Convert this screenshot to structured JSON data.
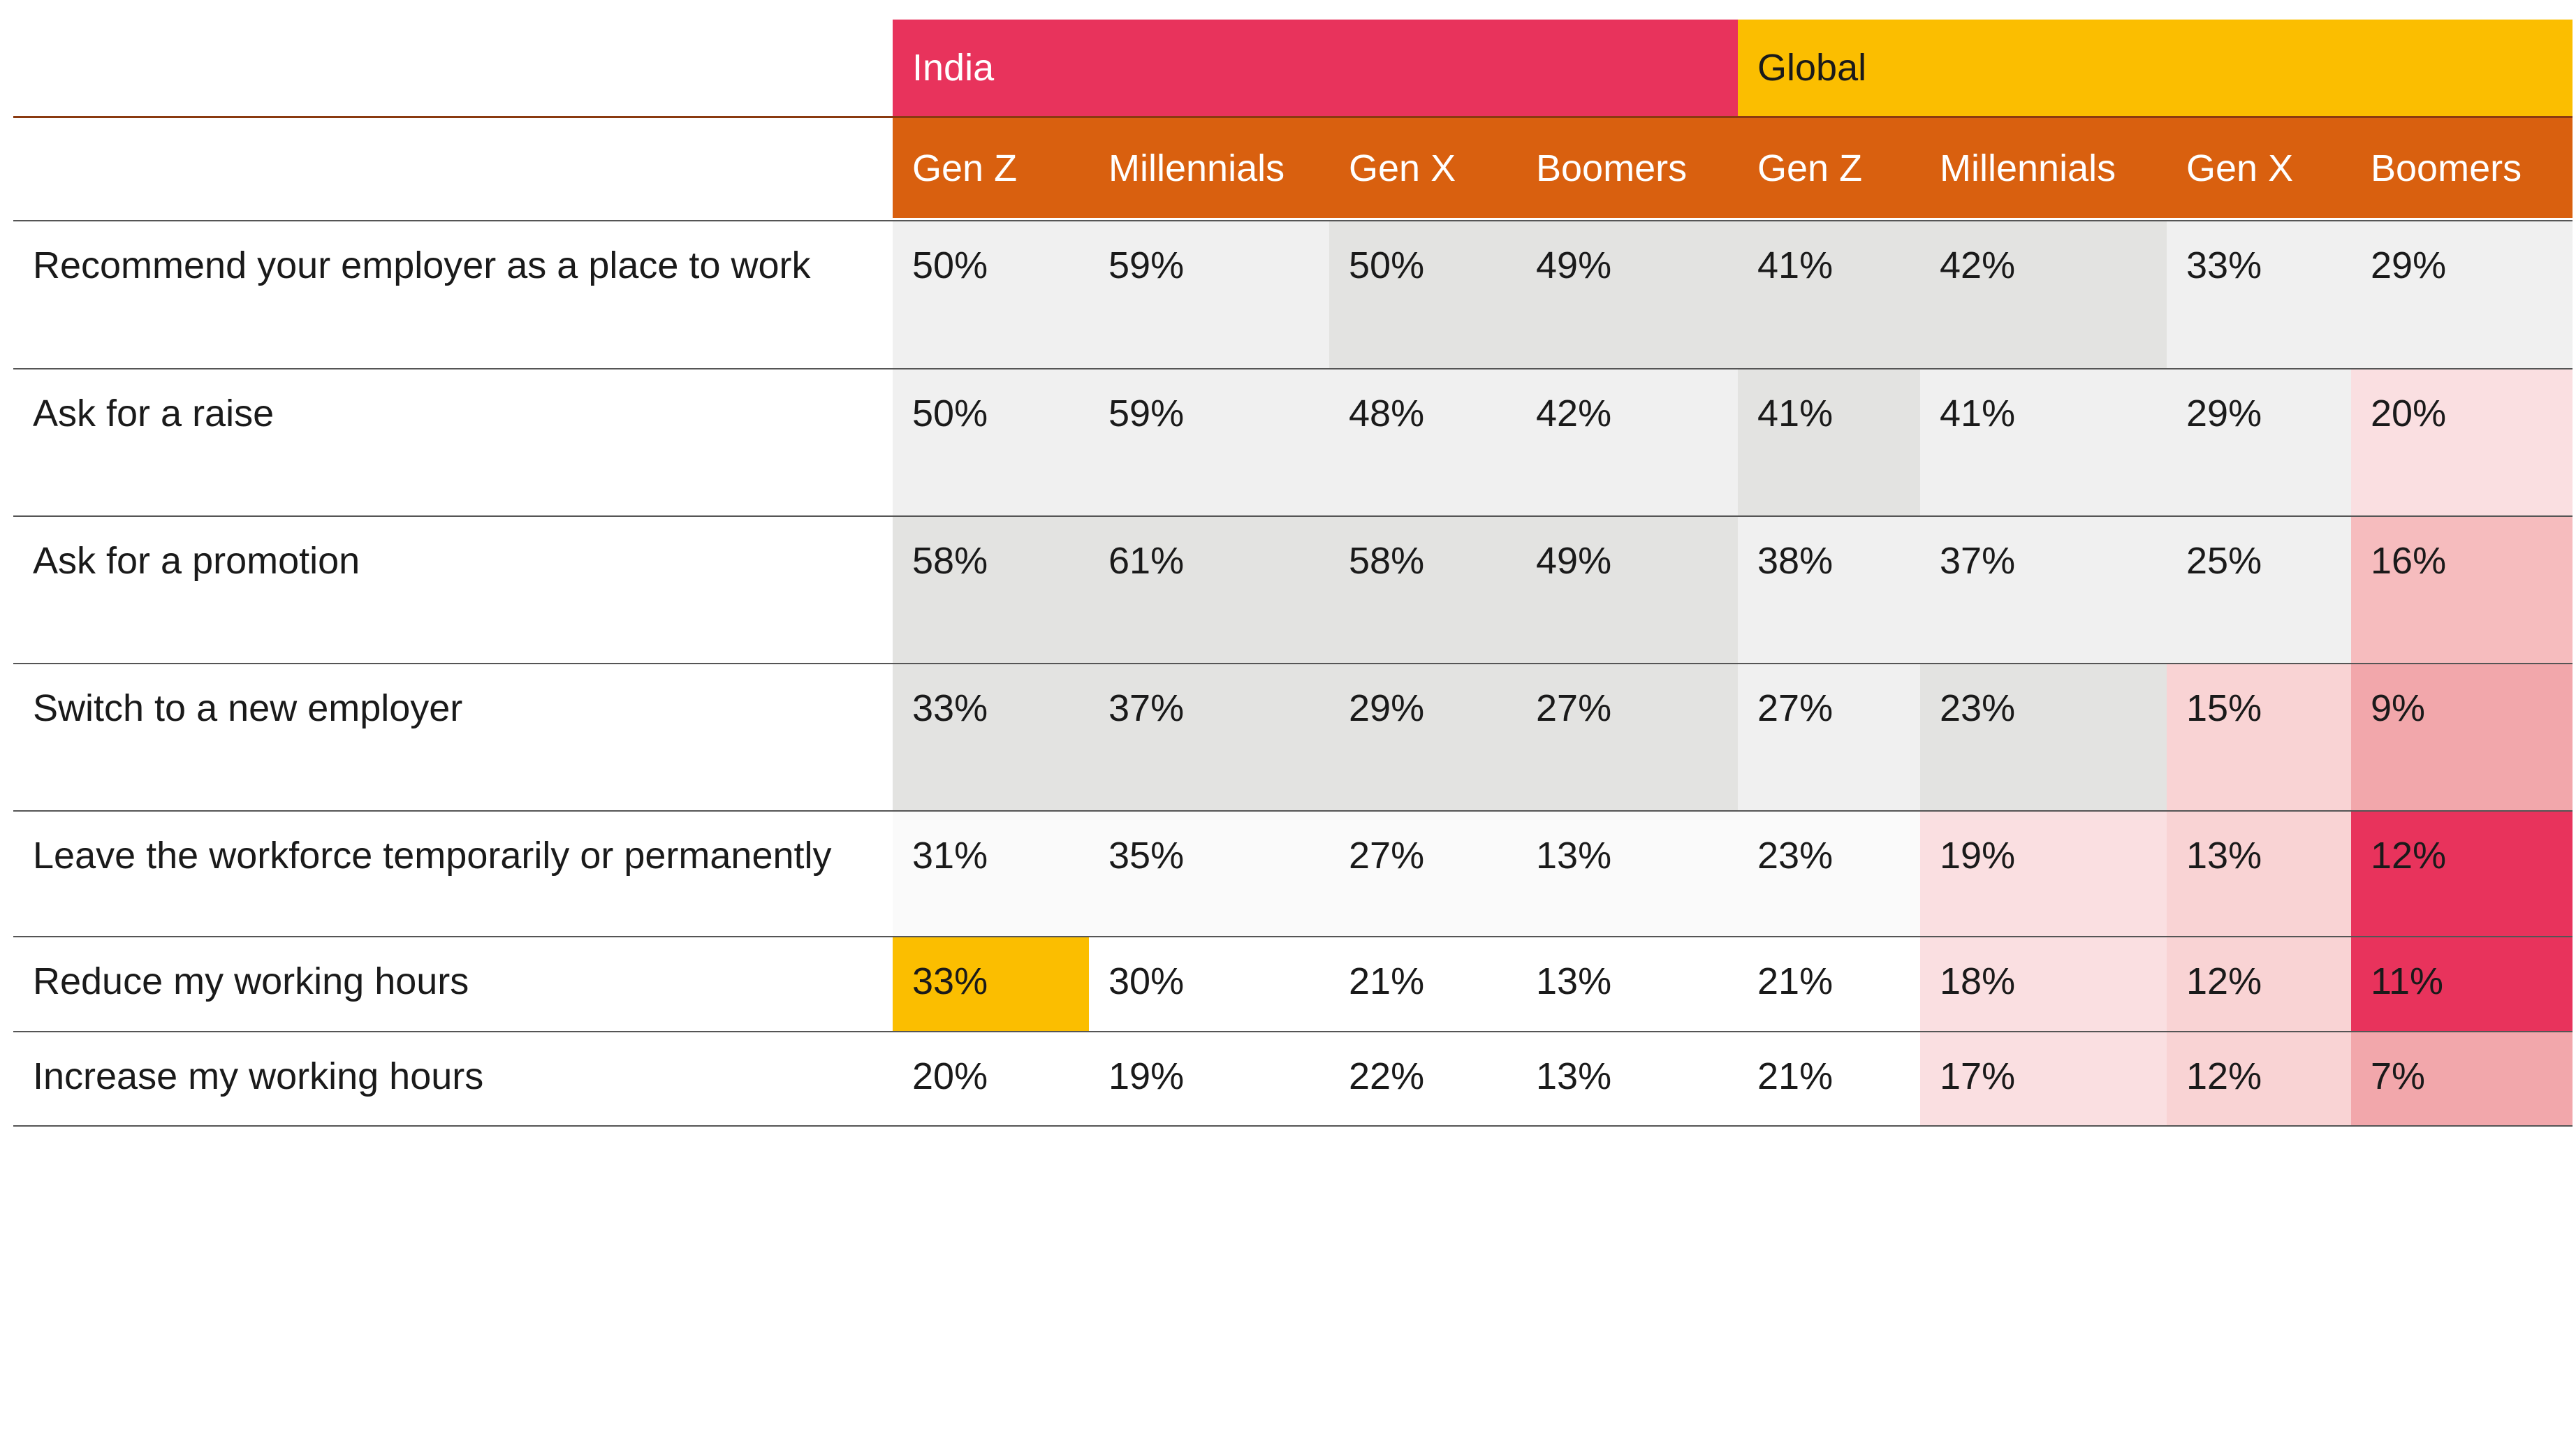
{
  "chart_data": {
    "type": "table",
    "groups": [
      {
        "name": "India",
        "color": "#e8335c"
      },
      {
        "name": "Global",
        "color": "#fbbe00"
      }
    ],
    "columns": [
      "Gen Z",
      "Millennials",
      "Gen X",
      "Boomers",
      "Gen Z",
      "Millennials",
      "Gen X",
      "Boomers"
    ],
    "header_color": "#d9600f",
    "rows": [
      {
        "label": "Recommend your employer as a place to work",
        "values": [
          "50%",
          "59%",
          "50%",
          "49%",
          "41%",
          "42%",
          "33%",
          "29%"
        ],
        "colors": [
          "#f0f0f0",
          "#f0f0f0",
          "#e3e3e1",
          "#e3e3e1",
          "#e3e3e1",
          "#e3e3e1",
          "#f0f0f0",
          "#f0f0f0"
        ]
      },
      {
        "label": "Ask for a raise",
        "values": [
          "50%",
          "59%",
          "48%",
          "42%",
          "41%",
          "41%",
          "29%",
          "20%"
        ],
        "colors": [
          "#f0f0f0",
          "#f0f0f0",
          "#f0f0f0",
          "#f0f0f0",
          "#e3e3e1",
          "#f0f0f0",
          "#f0f0f0",
          "#fadfe1"
        ]
      },
      {
        "label": "Ask for a promotion",
        "values": [
          "58%",
          "61%",
          "58%",
          "49%",
          "38%",
          "37%",
          "25%",
          "16%"
        ],
        "colors": [
          "#e3e3e1",
          "#e3e3e1",
          "#e3e3e1",
          "#e3e3e1",
          "#f0f0f0",
          "#f0f0f0",
          "#f0f0f0",
          "#f6bcbe"
        ]
      },
      {
        "label": "Switch to a new employer",
        "values": [
          "33%",
          "37%",
          "29%",
          "27%",
          "27%",
          "23%",
          "15%",
          "9%"
        ],
        "colors": [
          "#e3e3e1",
          "#e3e3e1",
          "#e3e3e1",
          "#e3e3e1",
          "#f0f0f0",
          "#e3e3e1",
          "#f9d3d4",
          "#f2a7ab"
        ]
      },
      {
        "label": "Leave the workforce temporarily or permanently",
        "values": [
          "31%",
          "35%",
          "27%",
          "13%",
          "23%",
          "19%",
          "13%",
          "12%"
        ],
        "colors": [
          "#fafafa",
          "#fafafa",
          "#fafafa",
          "#fafafa",
          "#fafafa",
          "#fadfe1",
          "#f9d3d4",
          "#e8335c"
        ]
      },
      {
        "label": "Reduce my working hours",
        "values": [
          "33%",
          "30%",
          "21%",
          "13%",
          "21%",
          "18%",
          "12%",
          "11%"
        ],
        "colors": [
          "#fbbe00",
          "#ffffff",
          "#ffffff",
          "#ffffff",
          "#ffffff",
          "#fadfe1",
          "#f9d3d4",
          "#e8335c"
        ]
      },
      {
        "label": "Increase my working hours",
        "values": [
          "20%",
          "19%",
          "22%",
          "13%",
          "21%",
          "17%",
          "12%",
          "7%"
        ],
        "colors": [
          "#ffffff",
          "#ffffff",
          "#ffffff",
          "#ffffff",
          "#ffffff",
          "#fadfe1",
          "#f9d3d4",
          "#f2a7ab"
        ]
      }
    ]
  }
}
